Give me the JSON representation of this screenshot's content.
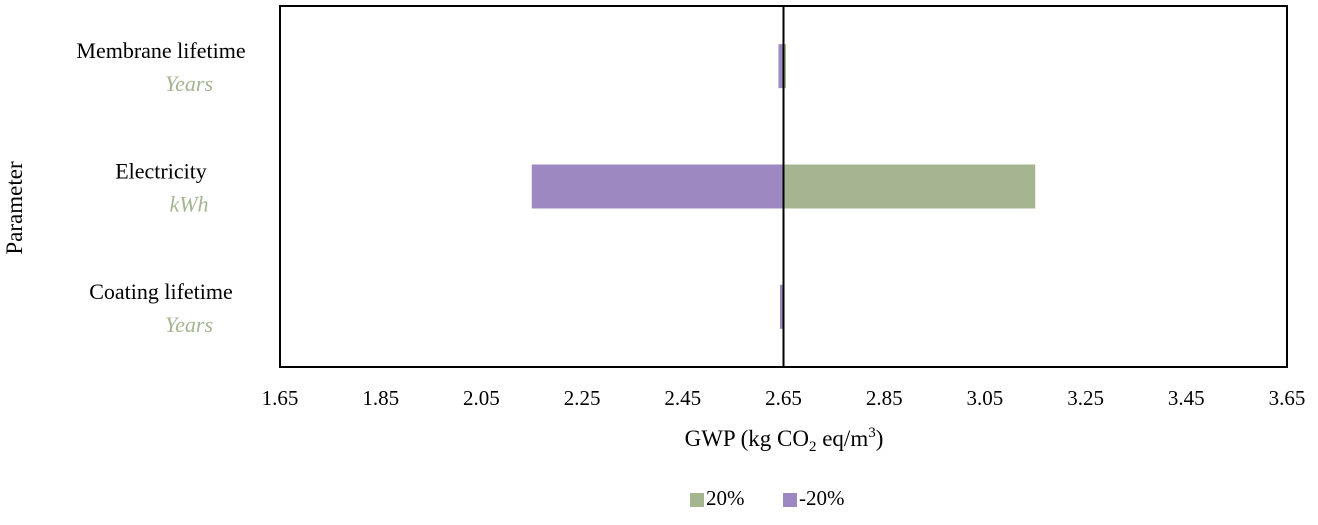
{
  "chart_data": {
    "type": "bar",
    "orientation": "horizontal",
    "title": "",
    "xlabel": "GWP (kg CO2 eq/m3)",
    "xlabel_parts": {
      "prefix": "GWP (kg CO",
      "sub": "2",
      "middle": " eq/m",
      "sup": "3",
      "suffix": ")"
    },
    "ylabel": "Parameter",
    "xlim": [
      1.65,
      3.65
    ],
    "xticks": [
      "1.65",
      "1.85",
      "2.05",
      "2.25",
      "2.45",
      "2.65",
      "2.85",
      "3.05",
      "3.25",
      "3.45",
      "3.65"
    ],
    "baseline": 2.65,
    "categories": [
      {
        "label": "Membrane lifetime",
        "unit": "Years"
      },
      {
        "label": "Electricity",
        "unit": "kWh"
      },
      {
        "label": "Coating lifetime",
        "unit": "Years"
      }
    ],
    "series": [
      {
        "name": "20%",
        "color": "#a5b592",
        "values": [
          2.655,
          3.15,
          2.652
        ]
      },
      {
        "name": "-20%",
        "color": "#9e88c2",
        "values": [
          2.64,
          2.15,
          2.643
        ]
      }
    ],
    "unit_color": "#a5b592",
    "grid": false,
    "legend_position": "bottom"
  }
}
